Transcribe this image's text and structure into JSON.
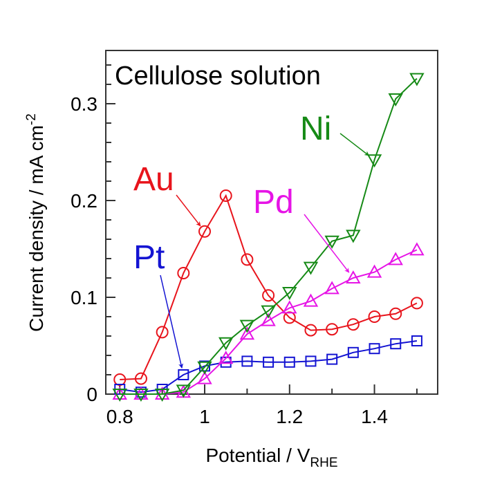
{
  "chart_data": {
    "type": "line",
    "title": "Cellulose solution",
    "xlabel": "Potential / V",
    "xlabel_sub": "RHE",
    "ylabel": "Current density / mA cm",
    "ylabel_sup": "-2",
    "xlim": [
      0.767,
      1.549
    ],
    "ylim": [
      0,
      0.355
    ],
    "xticks": [
      0.8,
      1,
      1.2,
      1.4
    ],
    "xtick_labels": [
      "0.8",
      "1",
      "1.2",
      "1.4"
    ],
    "yticks": [
      0,
      0.1,
      0.2,
      0.3
    ],
    "ytick_labels": [
      "0",
      "0.1",
      "0.2",
      "0.3"
    ],
    "grid": false,
    "x": [
      0.8,
      0.85,
      0.9,
      0.95,
      1.0,
      1.05,
      1.1,
      1.15,
      1.2,
      1.25,
      1.3,
      1.35,
      1.4,
      1.45,
      1.5
    ],
    "series": [
      {
        "name": "Au",
        "color": "#e8141c",
        "marker": "circle",
        "values": [
          0.015,
          0.016,
          0.064,
          0.125,
          0.168,
          0.205,
          0.139,
          0.102,
          0.079,
          0.066,
          0.067,
          0.072,
          0.08,
          0.083,
          0.094
        ]
      },
      {
        "name": "Pt",
        "color": "#1414d2",
        "marker": "square",
        "values": [
          0.005,
          0.002,
          0.005,
          0.02,
          0.029,
          0.033,
          0.034,
          0.033,
          0.033,
          0.034,
          0.036,
          0.043,
          0.047,
          0.052,
          0.055
        ]
      },
      {
        "name": "Pd",
        "color": "#e614e6",
        "marker": "triangle-up",
        "values": [
          0.0,
          0.0,
          0.0,
          0.002,
          0.016,
          0.037,
          0.062,
          0.076,
          0.089,
          0.096,
          0.109,
          0.12,
          0.126,
          0.139,
          0.149
        ]
      },
      {
        "name": "Ni",
        "color": "#168a16",
        "marker": "triangle-down",
        "values": [
          0.0,
          0.0,
          0.0,
          0.004,
          0.028,
          0.053,
          0.071,
          0.086,
          0.105,
          0.131,
          0.158,
          0.164,
          0.242,
          0.305,
          0.326
        ]
      }
    ],
    "annotations": [
      {
        "text": "Au",
        "series": "Au",
        "points_to_x": 1.0
      },
      {
        "text": "Pt",
        "series": "Pt",
        "points_to_x": 0.95
      },
      {
        "text": "Pd",
        "series": "Pd",
        "points_to_x": 1.35
      },
      {
        "text": "Ni",
        "series": "Ni",
        "points_to_x": 1.4
      }
    ]
  }
}
